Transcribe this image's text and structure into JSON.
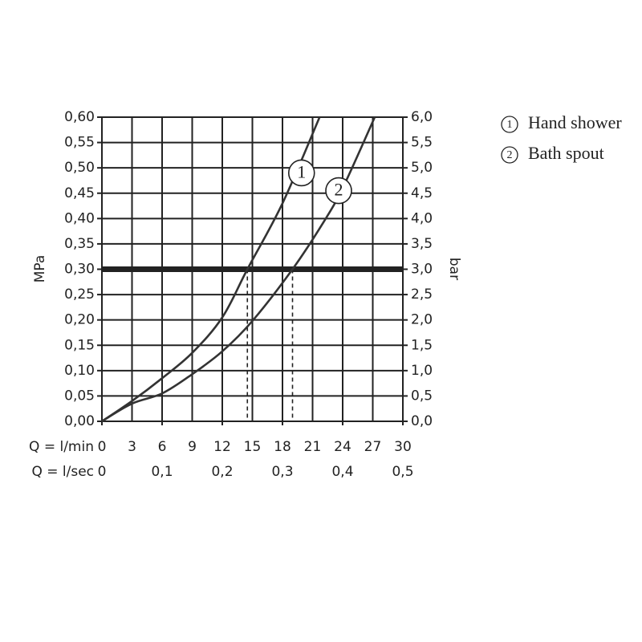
{
  "chart_data": {
    "type": "line",
    "x_label": "Q = l/min",
    "x2_label": "Q = l/sec",
    "y_label": "MPa",
    "y2_label": "bar",
    "xlim": [
      0,
      30
    ],
    "xticks": [
      0,
      3,
      6,
      9,
      12,
      15,
      18,
      21,
      24,
      27,
      30
    ],
    "x2lim": [
      0,
      0.5
    ],
    "x2ticks": [
      0,
      {
        "value": 0.1,
        "label": "0,1"
      },
      {
        "value": 0.2,
        "label": "0,2"
      },
      {
        "value": 0.3,
        "label": "0,3"
      },
      {
        "value": 0.4,
        "label": "0,4"
      },
      {
        "value": 0.5,
        "label": "0,5"
      }
    ],
    "ylim": [
      0,
      0.6
    ],
    "yticks": [
      {
        "value": 0,
        "label": "0,00"
      },
      {
        "value": 0.05,
        "label": "0,05"
      },
      {
        "value": 0.1,
        "label": "0,10"
      },
      {
        "value": 0.15,
        "label": "0,15"
      },
      {
        "value": 0.2,
        "label": "0,20"
      },
      {
        "value": 0.25,
        "label": "0,25"
      },
      {
        "value": 0.3,
        "label": "0,30"
      },
      {
        "value": 0.35,
        "label": "0,35"
      },
      {
        "value": 0.4,
        "label": "0,40"
      },
      {
        "value": 0.45,
        "label": "0,45"
      },
      {
        "value": 0.5,
        "label": "0,50"
      },
      {
        "value": 0.55,
        "label": "0,55"
      },
      {
        "value": 0.6,
        "label": "0,60"
      }
    ],
    "y2lim": [
      0,
      6
    ],
    "y2ticks": [
      {
        "value": 0,
        "label": "0,0"
      },
      {
        "value": 0.5,
        "label": "0,5"
      },
      {
        "value": 1,
        "label": "1,0"
      },
      {
        "value": 1.5,
        "label": "1,5"
      },
      {
        "value": 2,
        "label": "2,0"
      },
      {
        "value": 2.5,
        "label": "2,5"
      },
      {
        "value": 3,
        "label": "3,0"
      },
      {
        "value": 3.5,
        "label": "3,5"
      },
      {
        "value": 4,
        "label": "4,0"
      },
      {
        "value": 4.5,
        "label": "4,5"
      },
      {
        "value": 5,
        "label": "5,0"
      },
      {
        "value": 5.5,
        "label": "5,5"
      },
      {
        "value": 6,
        "label": "6,0"
      }
    ],
    "grid": true,
    "reference_line": 0.3,
    "drop_lines_x": [
      14.5,
      19
    ],
    "series": [
      {
        "name": "Hand shower",
        "label": "1",
        "color": "#333333",
        "label_at": [
          19.9,
          0.49
        ],
        "x": [
          0,
          3,
          6,
          9,
          12,
          14.5,
          18,
          21.7
        ],
        "values": [
          0,
          0.04,
          0.085,
          0.135,
          0.205,
          0.3,
          0.43,
          0.6
        ]
      },
      {
        "name": "Bath spout",
        "label": "2",
        "color": "#333333",
        "label_at": [
          23.6,
          0.455
        ],
        "x": [
          0,
          3,
          6,
          9,
          12,
          15,
          19,
          22,
          24,
          27.2
        ],
        "values": [
          0,
          0.035,
          0.055,
          0.093,
          0.138,
          0.198,
          0.3,
          0.39,
          0.46,
          0.6
        ]
      }
    ]
  }
}
